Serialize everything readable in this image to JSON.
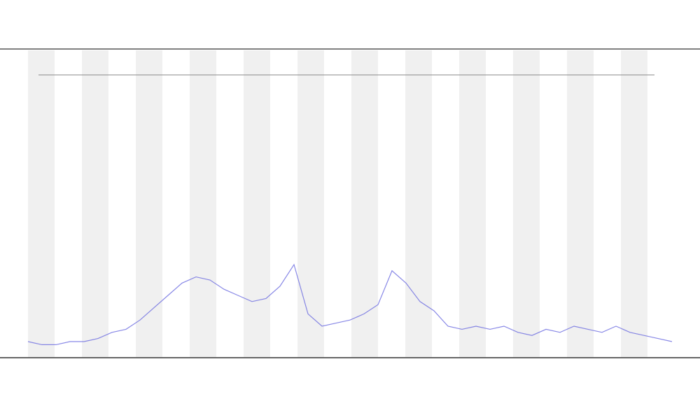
{
  "chart_data": {
    "type": "line",
    "x": [
      0,
      1,
      2,
      3,
      4,
      5,
      6,
      7,
      8,
      9,
      10,
      11,
      12,
      13,
      14,
      15,
      16,
      17,
      18,
      19,
      20,
      21,
      22,
      23,
      24,
      25,
      26,
      27,
      28,
      29,
      30,
      31,
      32,
      33,
      34,
      35,
      36,
      37,
      38,
      39,
      40,
      41,
      42,
      43,
      44,
      45,
      46
    ],
    "series": [
      {
        "color": "#6a6ae0",
        "values": [
          5,
          4,
          4,
          5,
          5,
          6,
          8,
          9,
          12,
          16,
          20,
          24,
          26,
          25,
          22,
          20,
          18,
          19,
          23,
          30,
          14,
          10,
          11,
          12,
          14,
          17,
          28,
          24,
          18,
          15,
          10,
          9,
          10,
          9,
          10,
          8,
          7,
          9,
          8,
          10,
          9,
          8,
          10,
          8,
          7,
          6,
          5
        ]
      }
    ],
    "xlim": [
      0,
      46
    ],
    "ylim": [
      0,
      100
    ]
  }
}
